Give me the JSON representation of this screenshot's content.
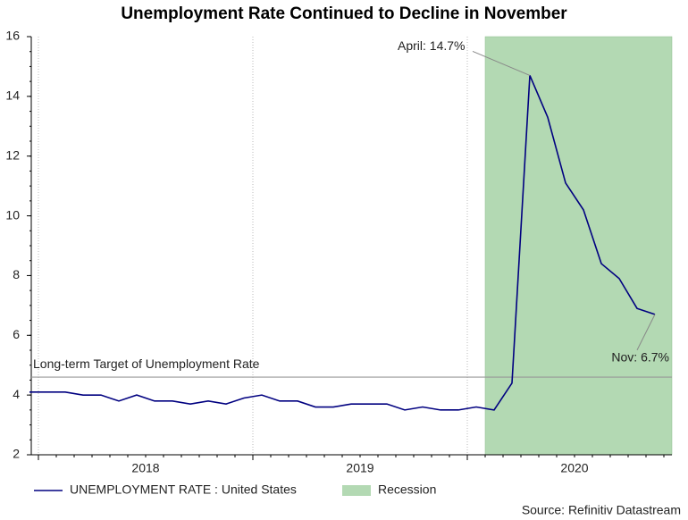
{
  "chart_data": {
    "type": "line",
    "title": "Unemployment Rate Continued to Decline in November",
    "x": [
      "2017-12",
      "2018-01",
      "2018-02",
      "2018-03",
      "2018-04",
      "2018-05",
      "2018-06",
      "2018-07",
      "2018-08",
      "2018-09",
      "2018-10",
      "2018-11",
      "2018-12",
      "2019-01",
      "2019-02",
      "2019-03",
      "2019-04",
      "2019-05",
      "2019-06",
      "2019-07",
      "2019-08",
      "2019-09",
      "2019-10",
      "2019-11",
      "2019-12",
      "2020-01",
      "2020-02",
      "2020-03",
      "2020-04",
      "2020-05",
      "2020-06",
      "2020-07",
      "2020-08",
      "2020-09",
      "2020-10",
      "2020-11"
    ],
    "series": [
      {
        "name": "UNEMPLOYMENT RATE : United States",
        "color": "#000080",
        "values": [
          4.1,
          4.1,
          4.1,
          4.0,
          4.0,
          3.8,
          4.0,
          3.8,
          3.8,
          3.7,
          3.8,
          3.7,
          3.9,
          4.0,
          3.8,
          3.8,
          3.6,
          3.6,
          3.7,
          3.7,
          3.7,
          3.5,
          3.6,
          3.5,
          3.5,
          3.6,
          3.5,
          4.4,
          14.7,
          13.3,
          11.1,
          10.2,
          8.4,
          7.9,
          6.9,
          6.7
        ]
      }
    ],
    "recession": {
      "name": "Recession",
      "start": "2020-02",
      "color": "#b3d9b3"
    },
    "target": {
      "label": "Long-term Target of Unemployment Rate",
      "value": 4.6
    },
    "annotations": [
      {
        "text": "April: 14.7%",
        "x": "2020-04"
      },
      {
        "text": "Nov: 6.7%",
        "x": "2020-11"
      }
    ],
    "ylim": [
      2,
      16
    ],
    "yticks": [
      2,
      4,
      6,
      8,
      10,
      12,
      14,
      16
    ],
    "xticks": [
      2018,
      2019,
      2020
    ],
    "source": "Source: Refinitiv Datastream"
  }
}
